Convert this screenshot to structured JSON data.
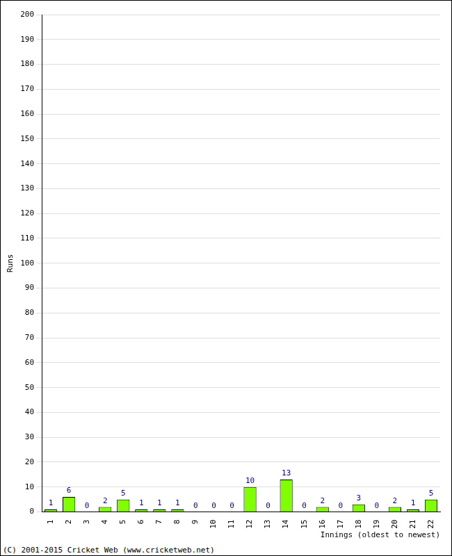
{
  "chart_data": {
    "type": "bar",
    "x_label": "Innings (oldest to newest)",
    "y_label": "Runs",
    "annotations": [
      "(C) 2001-2015 Cricket Web (www.cricketweb.net)"
    ],
    "categories": [
      "1",
      "2",
      "3",
      "4",
      "5",
      "6",
      "7",
      "8",
      "9",
      "10",
      "11",
      "12",
      "13",
      "14",
      "15",
      "16",
      "17",
      "18",
      "19",
      "20",
      "21",
      "22"
    ],
    "values": [
      1,
      6,
      0,
      2,
      5,
      1,
      1,
      1,
      0,
      0,
      0,
      10,
      0,
      13,
      0,
      2,
      0,
      3,
      0,
      2,
      1,
      5
    ],
    "color": "#80ff00",
    "ylim": [
      0,
      200
    ],
    "yticks": [
      0,
      10,
      20,
      30,
      40,
      50,
      60,
      70,
      80,
      90,
      100,
      110,
      120,
      130,
      140,
      150,
      160,
      170,
      180,
      190,
      200
    ],
    "grid": true,
    "data_labels": true
  }
}
